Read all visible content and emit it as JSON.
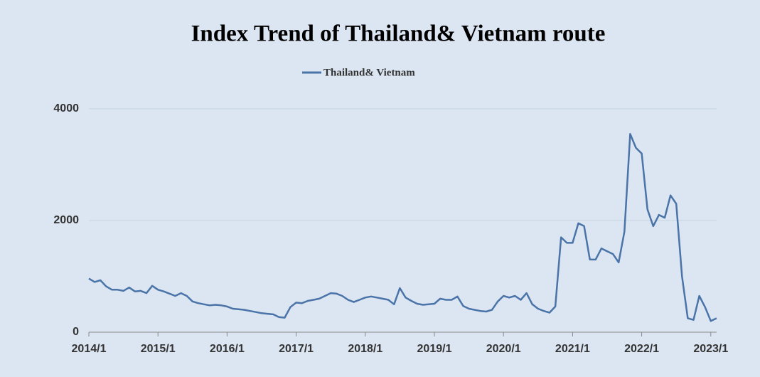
{
  "chart_data": {
    "type": "line",
    "title": "Index Trend of Thailand& Vietnam route",
    "categories": [
      "2014/1",
      null,
      null,
      null,
      null,
      null,
      null,
      null,
      null,
      null,
      null,
      null,
      "2015/1",
      null,
      null,
      null,
      null,
      null,
      null,
      null,
      null,
      null,
      null,
      null,
      "2016/1",
      null,
      null,
      null,
      null,
      null,
      null,
      null,
      null,
      null,
      null,
      null,
      "2017/1",
      null,
      null,
      null,
      null,
      null,
      null,
      null,
      null,
      null,
      null,
      null,
      "2018/1",
      null,
      null,
      null,
      null,
      null,
      null,
      null,
      null,
      null,
      null,
      null,
      "2019/1",
      null,
      null,
      null,
      null,
      null,
      null,
      null,
      null,
      null,
      null,
      null,
      "2020/1",
      null,
      null,
      null,
      null,
      null,
      null,
      null,
      null,
      null,
      null,
      null,
      "2021/1",
      null,
      null,
      null,
      null,
      null,
      null,
      null,
      null,
      null,
      null,
      null,
      "2022/1",
      null,
      null,
      null,
      null,
      null,
      null,
      null,
      null,
      null,
      null,
      null,
      "2023/1",
      null
    ],
    "series": [
      {
        "name": "Thailand& Vietnam",
        "color": "#4a74a8",
        "values": [
          960,
          900,
          930,
          820,
          760,
          760,
          740,
          800,
          730,
          740,
          700,
          830,
          760,
          730,
          690,
          650,
          700,
          650,
          550,
          520,
          500,
          480,
          490,
          480,
          460,
          420,
          410,
          400,
          380,
          360,
          340,
          330,
          320,
          270,
          260,
          450,
          530,
          520,
          560,
          580,
          600,
          650,
          700,
          690,
          650,
          580,
          540,
          580,
          620,
          640,
          620,
          600,
          580,
          500,
          790,
          620,
          560,
          510,
          490,
          500,
          510,
          600,
          580,
          580,
          640,
          470,
          420,
          400,
          380,
          370,
          400,
          550,
          650,
          620,
          650,
          580,
          700,
          500,
          420,
          380,
          350,
          460,
          1700,
          1600,
          1600,
          1950,
          1900,
          1300,
          1300,
          1500,
          1450,
          1400,
          1250,
          1800,
          3550,
          3300,
          3200,
          2200,
          1900,
          2100,
          2050,
          2450,
          2300,
          1000,
          250,
          220,
          650,
          450,
          200,
          250
        ]
      }
    ],
    "ylim": [
      0,
      4000
    ],
    "yticks": [
      0,
      2000,
      4000
    ],
    "grid": true,
    "legend": "top"
  }
}
